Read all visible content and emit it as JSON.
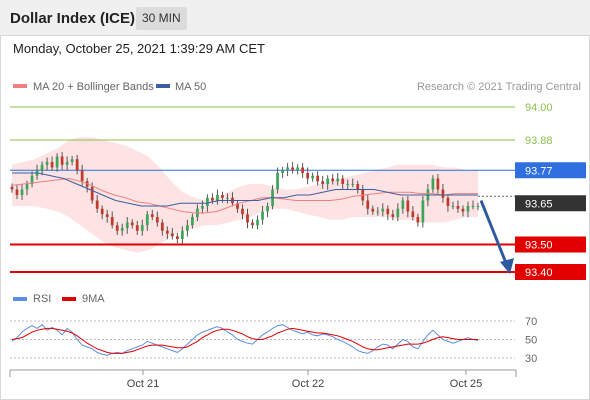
{
  "header": {
    "title": "Dollar Index (ICE)",
    "timeframe": "30 MIN"
  },
  "timestamp": "Monday, October 25, 2021 1:39:29 AM CET",
  "colors": {
    "ma20": "#f08080",
    "ma50": "#3a5ea0",
    "resistance": "#8cbf4f",
    "pivot": "#2f6fe0",
    "support": "#e00000",
    "price": "#333333",
    "rsi": "#5b8de0",
    "rsi_ma": "#e00000",
    "arrow": "#2e5aa0"
  },
  "chart_data": [
    {
      "type": "candlestick",
      "legend": {
        "ma20": "MA 20 + Bollinger Bands",
        "ma50": "MA 50",
        "placement": "top-left"
      },
      "watermark": "Research © 2021 Trading Central",
      "x_ticks": [
        "Oct 21",
        "Oct 22",
        "Oct 25"
      ],
      "ylim": [
        93.33,
        94.05
      ],
      "levels": [
        {
          "value": 94.0,
          "label": "94.00",
          "kind": "resistance"
        },
        {
          "value": 93.88,
          "label": "93.88",
          "kind": "resistance"
        },
        {
          "value": 93.77,
          "label": "93.77",
          "kind": "pivot"
        },
        {
          "value": 93.5,
          "label": "93.50",
          "kind": "support"
        },
        {
          "value": 93.4,
          "label": "93.40",
          "kind": "support"
        }
      ],
      "last_price": {
        "value": 93.65,
        "label": "93.65"
      },
      "forecast_arrow": {
        "from": 93.66,
        "to": 93.4,
        "direction": "down"
      },
      "close": [
        93.7,
        93.68,
        93.7,
        93.72,
        93.75,
        93.77,
        93.79,
        93.8,
        93.78,
        93.82,
        93.79,
        93.8,
        93.81,
        93.77,
        93.73,
        93.71,
        93.66,
        93.63,
        93.61,
        93.6,
        93.57,
        93.55,
        93.56,
        93.58,
        93.57,
        93.55,
        93.57,
        93.61,
        93.6,
        93.58,
        93.55,
        93.54,
        93.53,
        93.52,
        93.55,
        93.57,
        93.6,
        93.63,
        93.64,
        93.67,
        93.66,
        93.68,
        93.67,
        93.67,
        93.65,
        93.63,
        93.61,
        93.58,
        93.57,
        93.59,
        93.62,
        93.64,
        93.7,
        93.76,
        93.77,
        93.78,
        93.77,
        93.78,
        93.76,
        93.74,
        93.75,
        93.73,
        93.72,
        93.74,
        93.73,
        93.74,
        93.72,
        93.72,
        93.72,
        93.7,
        93.66,
        93.63,
        93.62,
        93.62,
        93.63,
        93.61,
        93.6,
        93.63,
        93.66,
        93.62,
        93.6,
        93.58,
        93.66,
        93.7,
        93.74,
        93.7,
        93.67,
        93.64,
        93.64,
        93.63,
        93.62,
        93.64,
        93.64,
        93.64
      ],
      "bollinger_upper": [
        93.79,
        93.8,
        93.81,
        93.83,
        93.85,
        93.88,
        93.89,
        93.89,
        93.88,
        93.87,
        93.86,
        93.84,
        93.82,
        93.78,
        93.73,
        93.69,
        93.67,
        93.66,
        93.67,
        93.69,
        93.71,
        93.72,
        93.72,
        93.71,
        93.7,
        93.7,
        93.71,
        93.72,
        93.73,
        93.74,
        93.75,
        93.76,
        93.77,
        93.78,
        93.79,
        93.79,
        93.79,
        93.79,
        93.78,
        93.78,
        93.77,
        93.77
      ],
      "bollinger_lower": [
        93.64,
        93.64,
        93.64,
        93.63,
        93.62,
        93.6,
        93.57,
        93.54,
        93.51,
        93.49,
        93.48,
        93.47,
        93.48,
        93.5,
        93.53,
        93.55,
        93.56,
        93.57,
        93.57,
        93.58,
        93.59,
        93.6,
        93.62,
        93.63,
        93.63,
        93.62,
        93.61,
        93.6,
        93.59,
        93.59,
        93.6,
        93.6,
        93.6,
        93.6,
        93.59,
        93.59,
        93.58,
        93.58,
        93.58,
        93.59,
        93.6,
        93.6
      ],
      "ma50": [
        93.76,
        93.76,
        93.76,
        93.75,
        93.74,
        93.72,
        93.7,
        93.68,
        93.66,
        93.65,
        93.64,
        93.64,
        93.64,
        93.65,
        93.65,
        93.65,
        93.66,
        93.66,
        93.66,
        93.66,
        93.67,
        93.67,
        93.68,
        93.68,
        93.69,
        93.7,
        93.7,
        93.7,
        93.7,
        93.69,
        93.68,
        93.68,
        93.68,
        93.68,
        93.68,
        93.68,
        93.68
      ]
    },
    {
      "type": "line",
      "legend": {
        "rsi": "RSI",
        "ma9": "9MA"
      },
      "ylim": [
        20,
        82
      ],
      "y_ticks": [
        "70",
        "50",
        "30"
      ],
      "rsi": [
        48,
        52,
        58,
        62,
        65,
        62,
        66,
        60,
        63,
        60,
        55,
        62,
        58,
        50,
        44,
        42,
        40,
        36,
        34,
        33,
        35,
        36,
        35,
        38,
        40,
        42,
        44,
        48,
        46,
        44,
        42,
        40,
        38,
        36,
        40,
        45,
        50,
        55,
        58,
        60,
        62,
        64,
        62,
        58,
        55,
        50,
        48,
        46,
        45,
        50,
        55,
        58,
        62,
        65,
        66,
        63,
        60,
        58,
        56,
        58,
        55,
        54,
        56,
        55,
        53,
        50,
        48,
        45,
        42,
        38,
        36,
        35,
        38,
        42,
        45,
        44,
        40,
        45,
        50,
        48,
        42,
        40,
        48,
        55,
        60,
        55,
        50,
        48,
        46,
        48,
        50,
        52,
        50,
        49
      ],
      "ma9": [
        50,
        51,
        52,
        55,
        58,
        60,
        61,
        62,
        62,
        61,
        60,
        59,
        57,
        54,
        50,
        46,
        43,
        40,
        38,
        36,
        35,
        35,
        35,
        36,
        37,
        39,
        41,
        43,
        44,
        44,
        44,
        43,
        42,
        41,
        41,
        42,
        45,
        48,
        52,
        55,
        58,
        60,
        61,
        61,
        60,
        58,
        56,
        53,
        51,
        50,
        50,
        52,
        54,
        57,
        59,
        61,
        62,
        61,
        60,
        59,
        58,
        57,
        57,
        56,
        55,
        54,
        52,
        50,
        48,
        45,
        42,
        40,
        39,
        39,
        40,
        41,
        42,
        43,
        44,
        45,
        45,
        45,
        46,
        48,
        50,
        52,
        53,
        52,
        51,
        50,
        50,
        50,
        50,
        50
      ]
    }
  ]
}
